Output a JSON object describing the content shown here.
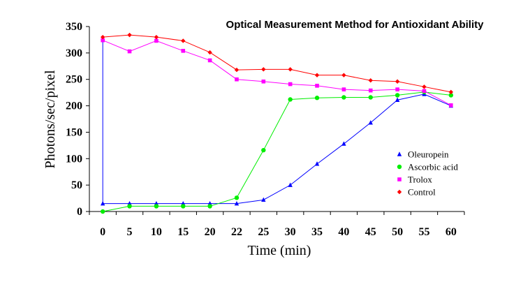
{
  "chart_data": {
    "type": "line",
    "title": "Optical Measurement Method for Antioxidant Ability",
    "xlabel": "Time (min)",
    "ylabel": "Photons/sec/pixel",
    "categories": [
      "0",
      "5",
      "10",
      "15",
      "20",
      "22",
      "25",
      "30",
      "35",
      "40",
      "45",
      "50",
      "55",
      "60"
    ],
    "yticks": [
      "0",
      "50",
      "100",
      "150",
      "200",
      "250",
      "300",
      "350"
    ],
    "ylim": [
      0,
      350
    ],
    "legend_position": "right",
    "grid": false,
    "series": [
      {
        "name": "Oleuropein",
        "color": "#0000ff",
        "marker": "triangle",
        "values": [
          15,
          15,
          15,
          15,
          15,
          15,
          22,
          50,
          90,
          128,
          168,
          211,
          222,
          200
        ]
      },
      {
        "name": "Ascorbic acid",
        "color": "#00ee00",
        "marker": "circle",
        "values": [
          0,
          10,
          10,
          10,
          10,
          26,
          116,
          212,
          215,
          216,
          216,
          220,
          226,
          220
        ]
      },
      {
        "name": "Trolox",
        "color": "#ff00ff",
        "marker": "square",
        "values": [
          324,
          303,
          323,
          304,
          286,
          250,
          246,
          241,
          238,
          231,
          229,
          231,
          228,
          201
        ]
      },
      {
        "name": "Control",
        "color": "#ff0000",
        "marker": "diamond",
        "values": [
          330,
          334,
          330,
          323,
          301,
          268,
          269,
          269,
          258,
          258,
          248,
          246,
          236,
          226
        ]
      }
    ],
    "annotations": [
      {
        "series": "Oleuropein",
        "note": "vertical drop at time 0",
        "from": 324,
        "to": 15
      }
    ]
  }
}
